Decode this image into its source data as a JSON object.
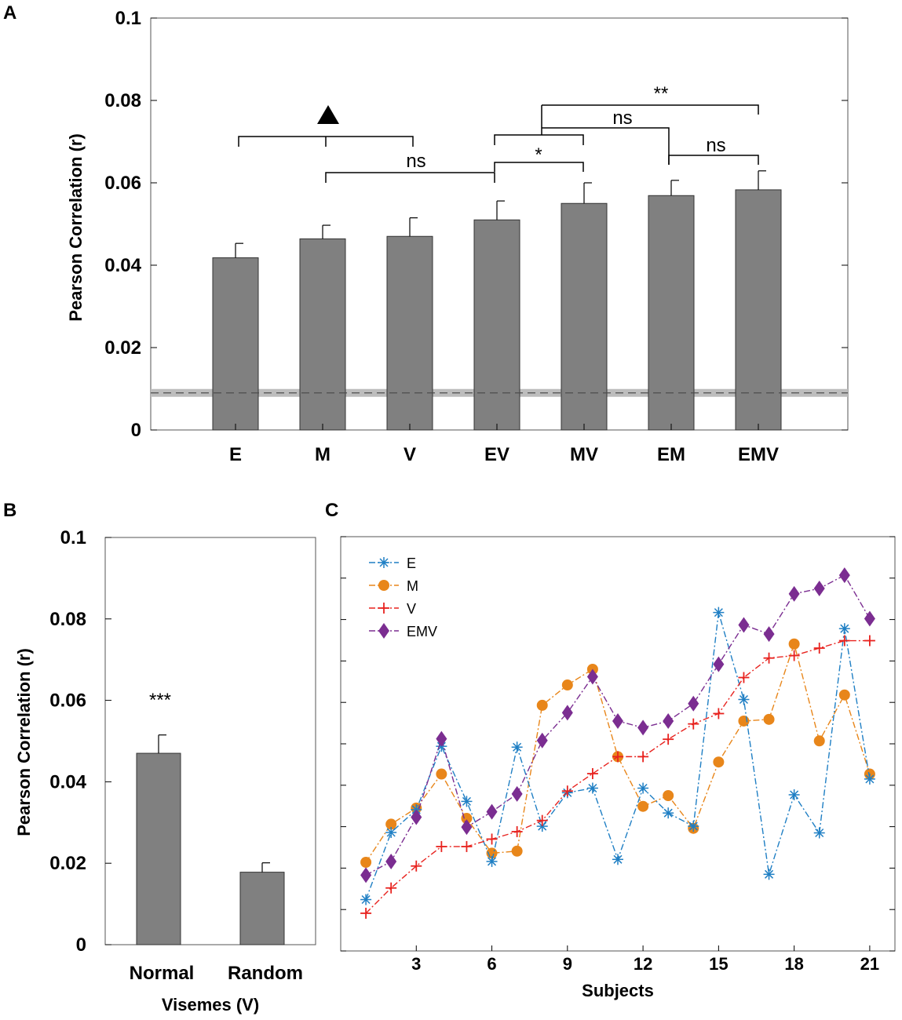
{
  "panels": {
    "A": "A",
    "B": "B",
    "C": "C"
  },
  "colors": {
    "bar": "#808080",
    "E": "#1f7fc4",
    "M": "#e8861a",
    "V": "#e8231f",
    "EMV": "#7b2d91",
    "chance": "#bdbdbd"
  },
  "chart_data": [
    {
      "panel": "A",
      "type": "bar",
      "title": "",
      "xlabel": "",
      "ylabel": "Pearson Correlation (r)",
      "ylim": [
        0,
        0.1
      ],
      "yticks": [
        "0",
        "0.02",
        "0.04",
        "0.06",
        "0.08",
        "0.1"
      ],
      "categories": [
        "E",
        "M",
        "V",
        "EV",
        "MV",
        "EM",
        "EMV"
      ],
      "values": [
        0.0418,
        0.0464,
        0.047,
        0.051,
        0.055,
        0.0569,
        0.0583
      ],
      "errors": [
        0.0035,
        0.0033,
        0.0045,
        0.0046,
        0.005,
        0.0037,
        0.0046
      ],
      "chance_level": 0.009,
      "annotations": [
        {
          "label": "▲",
          "groups": [
            [
              "E",
              "V"
            ],
            [
              "M"
            ]
          ]
        },
        {
          "label": "ns",
          "from": "M",
          "to": "EV"
        },
        {
          "label": "*",
          "from": "EV",
          "to": "MV"
        },
        {
          "label": "ns",
          "from": "EV/MV",
          "to": "EM"
        },
        {
          "label": "**",
          "from": "EV/MV",
          "to": "EMV"
        },
        {
          "label": "ns",
          "from": "EM",
          "to": "EMV"
        }
      ]
    },
    {
      "panel": "B",
      "type": "bar",
      "xlabel": "Visemes (V)",
      "ylabel": "Pearson Correlation (r)",
      "ylim": [
        0,
        0.1
      ],
      "yticks": [
        "0",
        "0.02",
        "0.04",
        "0.06",
        "0.08",
        "0.1"
      ],
      "categories": [
        "Normal",
        "Random"
      ],
      "values": [
        0.047,
        0.0178
      ],
      "errors": [
        0.0045,
        0.0023
      ],
      "annotations": [
        {
          "label": "***",
          "over": "Normal"
        }
      ]
    },
    {
      "panel": "C",
      "type": "line",
      "xlabel": "Subjects",
      "ylabel": "",
      "xlim": [
        0,
        22
      ],
      "ylim": [
        0,
        0.1
      ],
      "xticks": [
        "3",
        "6",
        "9",
        "12",
        "15",
        "18",
        "21"
      ],
      "x": [
        1,
        2,
        3,
        4,
        5,
        6,
        7,
        8,
        9,
        10,
        11,
        12,
        13,
        14,
        15,
        16,
        17,
        18,
        19,
        20,
        21
      ],
      "series": [
        {
          "name": "E",
          "marker": "*",
          "values": [
            0.0124,
            0.0286,
            0.0341,
            0.0494,
            0.0361,
            0.0216,
            0.0492,
            0.0301,
            0.0382,
            0.0393,
            0.0221,
            0.0393,
            0.0333,
            0.0301,
            0.0817,
            0.0607,
            0.0185,
            0.0377,
            0.0285,
            0.0778,
            0.0415
          ]
        },
        {
          "name": "M",
          "marker": "o",
          "values": [
            0.0214,
            0.0306,
            0.0345,
            0.0427,
            0.032,
            0.0236,
            0.0241,
            0.0593,
            0.0642,
            0.068,
            0.0469,
            0.0349,
            0.0375,
            0.0296,
            0.0456,
            0.0555,
            0.0559,
            0.0741,
            0.0507,
            0.0618,
            0.0427
          ]
        },
        {
          "name": "V",
          "marker": "+",
          "values": [
            0.0091,
            0.0152,
            0.0205,
            0.0252,
            0.0252,
            0.027,
            0.0288,
            0.0315,
            0.0386,
            0.0428,
            0.0469,
            0.0469,
            0.0511,
            0.0548,
            0.0573,
            0.066,
            0.0707,
            0.0713,
            0.0731,
            0.0749,
            0.0749
          ]
        },
        {
          "name": "EMV",
          "marker": "d",
          "values": [
            0.0183,
            0.0216,
            0.0323,
            0.0512,
            0.0299,
            0.0336,
            0.0379,
            0.0508,
            0.0575,
            0.0662,
            0.0555,
            0.0539,
            0.0555,
            0.0597,
            0.0692,
            0.0787,
            0.0765,
            0.0862,
            0.0875,
            0.0907,
            0.0802
          ]
        }
      ]
    }
  ]
}
